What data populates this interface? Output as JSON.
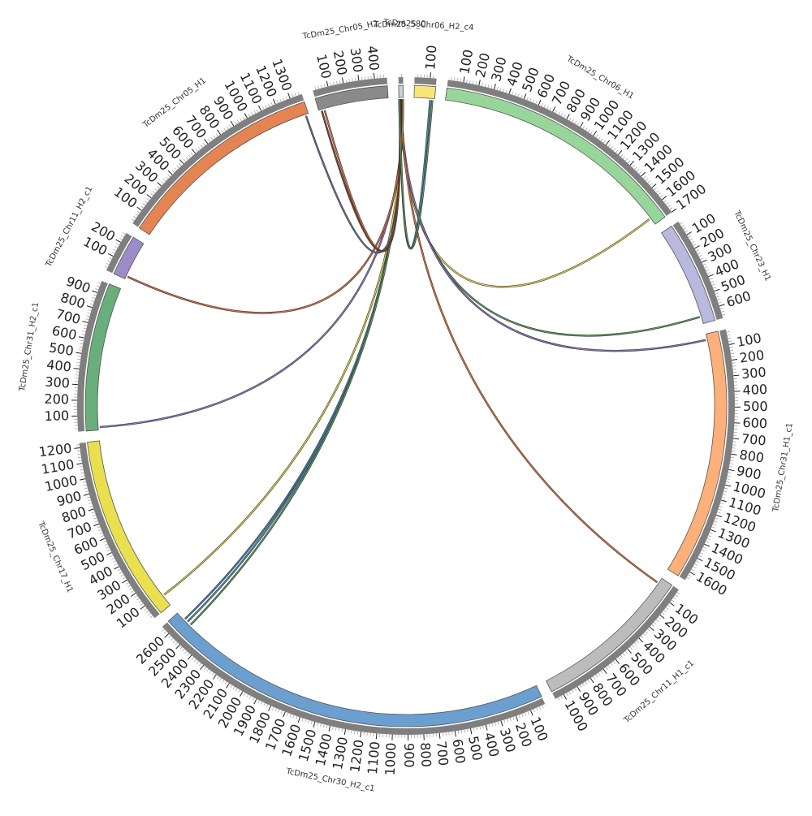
{
  "chart_data": {
    "type": "chord",
    "segments": [
      {
        "id": "s1",
        "name": "TcDm25_Chr06_H2_c4",
        "length": 140,
        "color": "#f9e57a"
      },
      {
        "id": "s2",
        "name": "TcDm25_Chr06_H1",
        "length": 1700,
        "color": "#98d59b"
      },
      {
        "id": "s3",
        "name": "TcDm25_Chr23_H1",
        "length": 680,
        "color": "#b9b8dd"
      },
      {
        "id": "s4",
        "name": "TcDm25_Chr31_H1_c1",
        "length": 1660,
        "color": "#fdb07a"
      },
      {
        "id": "s5",
        "name": "TcDm25_Chr11_H1_c1",
        "length": 1060,
        "color": "#bcbcbc"
      },
      {
        "id": "s6",
        "name": "TcDm25_Chr30_H2_c1",
        "length": 2660,
        "color": "#6b9fcf"
      },
      {
        "id": "s7",
        "name": "TcDm25_Chr17_H1",
        "length": 1230,
        "color": "#eadf4f"
      },
      {
        "id": "s8",
        "name": "TcDm25_Chr31_H2_c1",
        "length": 980,
        "color": "#6aae7b"
      },
      {
        "id": "s9",
        "name": "TcDm25_Chr11_H2_c1",
        "length": 270,
        "color": "#9d8cc8"
      },
      {
        "id": "s10",
        "name": "TcDm25_Chr05_H1",
        "length": 1380,
        "color": "#e58453"
      },
      {
        "id": "s11",
        "name": "TcDm25_Chr05_H2",
        "length": 480,
        "color": "#8a8a8a"
      },
      {
        "id": "s12",
        "name": "TcDm25_580",
        "length": 30,
        "color": "#cfcfcf"
      }
    ],
    "links": [
      {
        "from": "s12",
        "from_pos": 10,
        "to": "s2",
        "to_pos": 1650,
        "color": "#e7d44d"
      },
      {
        "from": "s12",
        "from_pos": 12,
        "to": "s3",
        "to_pos": 630,
        "color": "#5b9e5e"
      },
      {
        "from": "s12",
        "from_pos": 14,
        "to": "s4",
        "to_pos": 40,
        "color": "#8979c0"
      },
      {
        "from": "s12",
        "from_pos": 16,
        "to": "s5",
        "to_pos": 40,
        "color": "#d9733f"
      },
      {
        "from": "s12",
        "from_pos": 18,
        "to": "s6",
        "to_pos": 2570,
        "color": "#4a8fbf"
      },
      {
        "from": "s12",
        "from_pos": 20,
        "to": "s6",
        "to_pos": 2595,
        "color": "#3e7fa9"
      },
      {
        "from": "s12",
        "from_pos": 22,
        "to": "s6",
        "to_pos": 2540,
        "color": "#5c9a4a"
      },
      {
        "from": "s12",
        "from_pos": 24,
        "to": "s7",
        "to_pos": 80,
        "color": "#e2d440"
      },
      {
        "from": "s12",
        "from_pos": 26,
        "to": "s8",
        "to_pos": 20,
        "color": "#8979c0"
      },
      {
        "from": "s12",
        "from_pos": 28,
        "to": "s9",
        "to_pos": 20,
        "color": "#d9733f"
      },
      {
        "from": "s10",
        "from_pos": 1360,
        "to": "s12",
        "to_pos": 8,
        "color": "#6b6b9a"
      },
      {
        "from": "s11",
        "from_pos": 40,
        "to": "s12",
        "to_pos": 4,
        "color": "#d9733f"
      },
      {
        "from": "s11",
        "from_pos": 20,
        "to": "s12",
        "to_pos": 6,
        "color": "#8a3f2a"
      },
      {
        "from": "s1",
        "from_pos": 110,
        "to": "s12",
        "to_pos": 2,
        "color": "#4a8fbf"
      },
      {
        "from": "s1",
        "from_pos": 125,
        "to": "s12",
        "to_pos": 3,
        "color": "#5b9e5e"
      }
    ]
  }
}
